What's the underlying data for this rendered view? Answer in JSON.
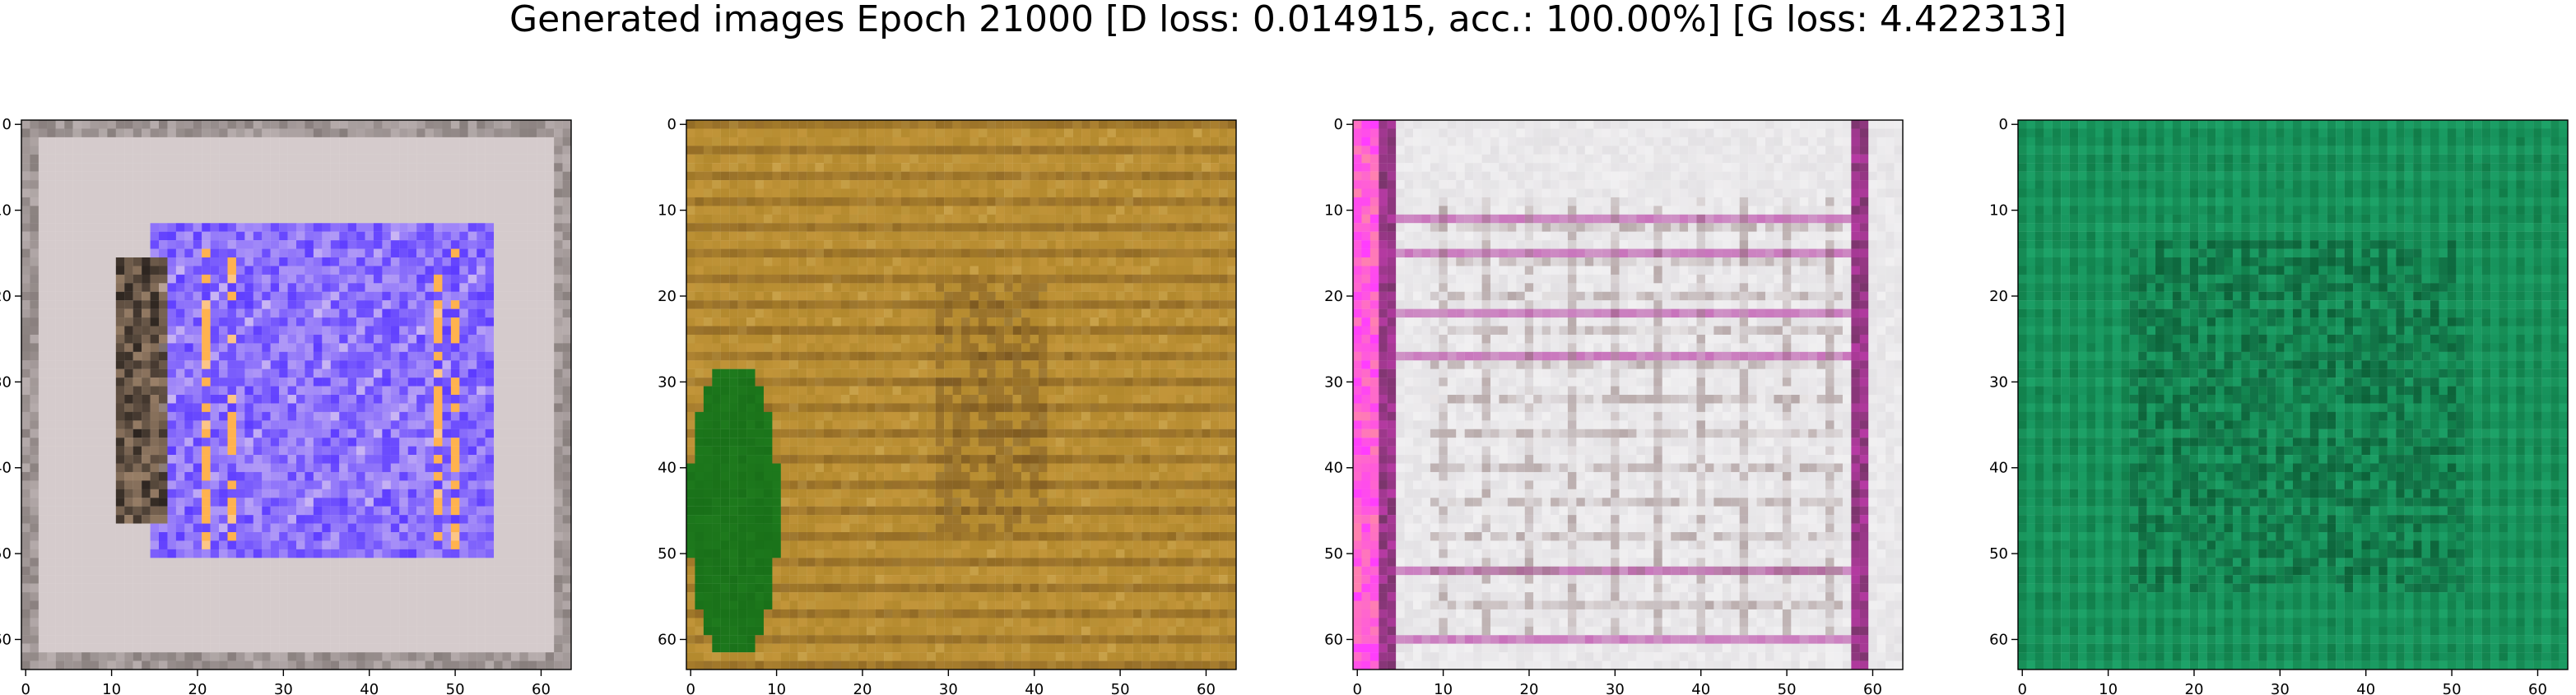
{
  "figure": {
    "title": "Generated images Epoch 21000 [D loss: 0.014915, acc.: 100.00%] [G loss: 4.422313]"
  },
  "panels": [
    {
      "name": "generated-image-1",
      "palette": {
        "border": "#b8aeae",
        "background": "#d5cbcc",
        "accent": "#5d3cff",
        "secondary": "#9a8068",
        "highlight": "#f6e8ef",
        "dark": "#2d2520",
        "stripe": "#ffb24f"
      }
    },
    {
      "name": "generated-image-2",
      "palette": {
        "border": "#8b6a23",
        "background": "#b3892d",
        "accent": "#6f4b1b",
        "secondary": "#d6a54a",
        "highlight": "#e4c06c",
        "dark": "#40250e",
        "blob": "#1e7a1d"
      }
    },
    {
      "name": "generated-image-3",
      "palette": {
        "border": "#9d8d98",
        "background": "#e3e1e4",
        "accent": "#b63aa3",
        "secondary": "#7c5f5d",
        "highlight": "#ffffff",
        "dark": "#3f3034",
        "stripe": "#ff3cff"
      }
    },
    {
      "name": "generated-image-4",
      "palette": {
        "border": "#0d5a33",
        "background": "#16905a",
        "accent": "#0c6b3a",
        "secondary": "#1ca66a",
        "highlight": "#2cc180",
        "dark": "#042d18"
      }
    }
  ],
  "axes": {
    "x_ticks": [
      "0",
      "10",
      "20",
      "30",
      "40",
      "50",
      "60"
    ],
    "y_ticks": [
      "0",
      "10",
      "20",
      "30",
      "40",
      "50",
      "60"
    ]
  }
}
